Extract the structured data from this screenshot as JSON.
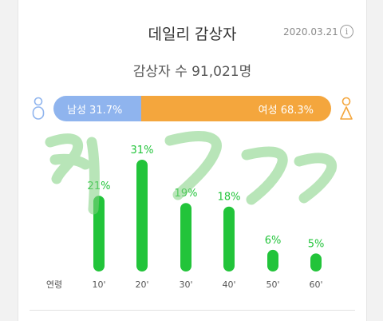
{
  "card": {
    "title": "데일리 감상자",
    "date": "2020.03.21",
    "info_icon": "info-icon",
    "viewers": "감상자 수 91,021명"
  },
  "gender": {
    "male_label": "남성 31.7%",
    "female_label": "여성 68.3%",
    "male_share": 31.7,
    "female_share": 68.3,
    "male_color": "#8fb4ee",
    "female_color": "#f4a63d",
    "male_icon": "person-outline-icon",
    "female_icon": "person-outline-icon"
  },
  "chart_data": {
    "type": "bar",
    "xlabel": "연령",
    "categories": [
      "10'",
      "20'",
      "30'",
      "40'",
      "50'",
      "60'"
    ],
    "values": [
      21,
      31,
      19,
      18,
      6,
      5
    ],
    "value_labels": [
      "21%",
      "31%",
      "19%",
      "18%",
      "6%",
      "5%"
    ],
    "bar_color": "#22c43a",
    "ylim": [
      0,
      31
    ]
  },
  "overlay": {
    "handwriting": "ㅋㄱㄱㄱ",
    "handwriting_color": "#7fd07f"
  }
}
